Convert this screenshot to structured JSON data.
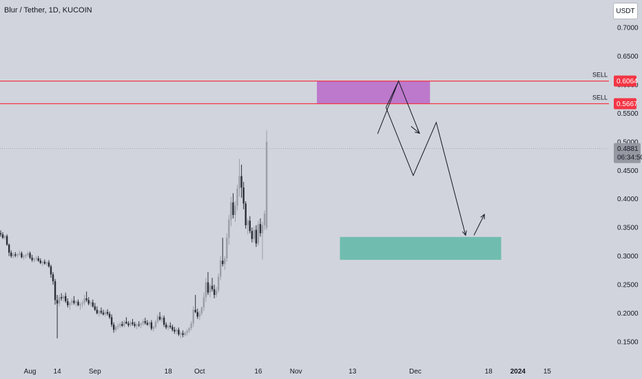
{
  "header": {
    "title": "Blur / Tether, 1D, KUCOIN",
    "currency": "USDT"
  },
  "colors": {
    "background": "#d1d4dc",
    "up": "#9b9ea6",
    "down": "#2a2e39",
    "level_line": "#f23645",
    "sell_zone": "#ba68c8",
    "buy_zone": "#5fb8a7",
    "path": "#131722"
  },
  "chart_data": {
    "type": "candlestick",
    "symbol": "Blur / Tether",
    "interval": "1D",
    "exchange": "KUCOIN",
    "y_range": [
      0.13,
      0.73
    ],
    "y_ticks": [
      "0.7000",
      "0.6500",
      "0.6000",
      "0.5500",
      "0.5000",
      "0.4500",
      "0.4000",
      "0.3500",
      "0.3000",
      "0.2500",
      "0.2000",
      "0.1500"
    ],
    "x_ticks": [
      {
        "label": "Aug",
        "index": 14,
        "bold": false
      },
      {
        "label": "14",
        "index": 27,
        "bold": false
      },
      {
        "label": "Sep",
        "index": 45,
        "bold": false
      },
      {
        "label": "18",
        "index": 80,
        "bold": false
      },
      {
        "label": "Oct",
        "index": 95,
        "bold": false
      },
      {
        "label": "16",
        "index": 123,
        "bold": false
      },
      {
        "label": "Nov",
        "index": 141,
        "bold": false
      },
      {
        "label": "13",
        "index": 168,
        "bold": false
      },
      {
        "label": "Dec",
        "index": 198,
        "bold": false
      },
      {
        "label": "18",
        "index": 233,
        "bold": false
      },
      {
        "label": "2024",
        "index": 247,
        "bold": true
      },
      {
        "label": "15",
        "index": 261,
        "bold": false
      }
    ],
    "levels": [
      {
        "value": 0.6064,
        "label": "0.6064",
        "note": "SELL"
      },
      {
        "value": 0.5667,
        "label": "0.5667",
        "note": "SELL"
      }
    ],
    "last_price": {
      "value": 0.4881,
      "label": "0.4881",
      "countdown": "06:34:50"
    },
    "zones": [
      {
        "name": "sell-zone",
        "from_index": 151,
        "to_index": 205,
        "low": 0.5667,
        "high": 0.6064
      },
      {
        "name": "buy-zone",
        "from_index": 162,
        "to_index": 239,
        "low": 0.2935,
        "high": 0.3335
      }
    ],
    "projection_path": [
      [
        180,
        0.514
      ],
      [
        190,
        0.6064
      ],
      [
        200,
        0.515
      ],
      [
        196,
        0.527
      ],
      [
        200,
        0.515
      ],
      [
        190,
        0.6064
      ],
      [
        184,
        0.56
      ],
      [
        197,
        0.441
      ],
      [
        208,
        0.534
      ],
      [
        222,
        0.3365
      ]
    ],
    "projection_arrow_2": [
      [
        226,
        0.3365
      ],
      [
        231,
        0.373
      ]
    ],
    "candles": [
      [
        0.34,
        0.345,
        0.334,
        0.338
      ],
      [
        0.338,
        0.342,
        0.33,
        0.332
      ],
      [
        0.332,
        0.337,
        0.328,
        0.335
      ],
      [
        0.335,
        0.338,
        0.318,
        0.32
      ],
      [
        0.32,
        0.322,
        0.3,
        0.306
      ],
      [
        0.306,
        0.31,
        0.297,
        0.3
      ],
      [
        0.3,
        0.306,
        0.296,
        0.303
      ],
      [
        0.303,
        0.307,
        0.298,
        0.301
      ],
      [
        0.301,
        0.305,
        0.297,
        0.303
      ],
      [
        0.303,
        0.31,
        0.3,
        0.305
      ],
      [
        0.305,
        0.308,
        0.296,
        0.298
      ],
      [
        0.298,
        0.303,
        0.294,
        0.3
      ],
      [
        0.3,
        0.304,
        0.296,
        0.302
      ],
      [
        0.302,
        0.308,
        0.299,
        0.305
      ],
      [
        0.305,
        0.308,
        0.295,
        0.297
      ],
      [
        0.297,
        0.302,
        0.29,
        0.293
      ],
      [
        0.293,
        0.298,
        0.289,
        0.295
      ],
      [
        0.295,
        0.3,
        0.291,
        0.296
      ],
      [
        0.296,
        0.3,
        0.29,
        0.292
      ],
      [
        0.292,
        0.296,
        0.286,
        0.288
      ],
      [
        0.288,
        0.292,
        0.282,
        0.29
      ],
      [
        0.29,
        0.294,
        0.285,
        0.287
      ],
      [
        0.287,
        0.291,
        0.283,
        0.289
      ],
      [
        0.289,
        0.293,
        0.28,
        0.282
      ],
      [
        0.282,
        0.285,
        0.262,
        0.268
      ],
      [
        0.268,
        0.272,
        0.25,
        0.256
      ],
      [
        0.256,
        0.26,
        0.215,
        0.223
      ],
      [
        0.223,
        0.232,
        0.156,
        0.217
      ],
      [
        0.217,
        0.232,
        0.212,
        0.228
      ],
      [
        0.228,
        0.235,
        0.222,
        0.226
      ],
      [
        0.226,
        0.232,
        0.22,
        0.23
      ],
      [
        0.23,
        0.236,
        0.218,
        0.221
      ],
      [
        0.221,
        0.226,
        0.21,
        0.214
      ],
      [
        0.214,
        0.22,
        0.206,
        0.218
      ],
      [
        0.218,
        0.226,
        0.214,
        0.222
      ],
      [
        0.222,
        0.23,
        0.215,
        0.218
      ],
      [
        0.218,
        0.223,
        0.212,
        0.22
      ],
      [
        0.22,
        0.224,
        0.212,
        0.214
      ],
      [
        0.214,
        0.219,
        0.206,
        0.216
      ],
      [
        0.216,
        0.222,
        0.21,
        0.218
      ],
      [
        0.218,
        0.232,
        0.214,
        0.226
      ],
      [
        0.226,
        0.238,
        0.22,
        0.223
      ],
      [
        0.223,
        0.228,
        0.214,
        0.217
      ],
      [
        0.217,
        0.222,
        0.212,
        0.219
      ],
      [
        0.219,
        0.224,
        0.21,
        0.212
      ],
      [
        0.212,
        0.218,
        0.204,
        0.206
      ],
      [
        0.206,
        0.212,
        0.198,
        0.2
      ],
      [
        0.2,
        0.206,
        0.194,
        0.204
      ],
      [
        0.204,
        0.21,
        0.198,
        0.201
      ],
      [
        0.201,
        0.206,
        0.196,
        0.198
      ],
      [
        0.198,
        0.205,
        0.194,
        0.202
      ],
      [
        0.202,
        0.207,
        0.196,
        0.199
      ],
      [
        0.199,
        0.203,
        0.19,
        0.193
      ],
      [
        0.193,
        0.198,
        0.176,
        0.18
      ],
      [
        0.18,
        0.184,
        0.166,
        0.171
      ],
      [
        0.171,
        0.178,
        0.168,
        0.176
      ],
      [
        0.176,
        0.182,
        0.172,
        0.178
      ],
      [
        0.178,
        0.184,
        0.174,
        0.181
      ],
      [
        0.181,
        0.186,
        0.176,
        0.178
      ],
      [
        0.178,
        0.188,
        0.175,
        0.185
      ],
      [
        0.185,
        0.193,
        0.181,
        0.182
      ],
      [
        0.182,
        0.186,
        0.176,
        0.179
      ],
      [
        0.179,
        0.187,
        0.176,
        0.184
      ],
      [
        0.184,
        0.19,
        0.178,
        0.181
      ],
      [
        0.181,
        0.185,
        0.175,
        0.178
      ],
      [
        0.178,
        0.183,
        0.172,
        0.18
      ],
      [
        0.18,
        0.186,
        0.176,
        0.179
      ],
      [
        0.179,
        0.184,
        0.174,
        0.182
      ],
      [
        0.182,
        0.19,
        0.178,
        0.186
      ],
      [
        0.186,
        0.192,
        0.18,
        0.183
      ],
      [
        0.183,
        0.188,
        0.178,
        0.18
      ],
      [
        0.18,
        0.186,
        0.176,
        0.184
      ],
      [
        0.184,
        0.188,
        0.17,
        0.173
      ],
      [
        0.173,
        0.178,
        0.168,
        0.176
      ],
      [
        0.176,
        0.188,
        0.173,
        0.185
      ],
      [
        0.185,
        0.198,
        0.182,
        0.194
      ],
      [
        0.194,
        0.202,
        0.187,
        0.189
      ],
      [
        0.189,
        0.196,
        0.184,
        0.192
      ],
      [
        0.192,
        0.196,
        0.176,
        0.18
      ],
      [
        0.18,
        0.184,
        0.172,
        0.175
      ],
      [
        0.175,
        0.18,
        0.17,
        0.178
      ],
      [
        0.178,
        0.184,
        0.173,
        0.176
      ],
      [
        0.176,
        0.18,
        0.168,
        0.171
      ],
      [
        0.171,
        0.176,
        0.164,
        0.168
      ],
      [
        0.168,
        0.174,
        0.163,
        0.171
      ],
      [
        0.171,
        0.175,
        0.16,
        0.163
      ],
      [
        0.163,
        0.168,
        0.156,
        0.165
      ],
      [
        0.165,
        0.17,
        0.158,
        0.162
      ],
      [
        0.162,
        0.168,
        0.159,
        0.166
      ],
      [
        0.166,
        0.172,
        0.161,
        0.169
      ],
      [
        0.169,
        0.176,
        0.165,
        0.174
      ],
      [
        0.174,
        0.186,
        0.17,
        0.182
      ],
      [
        0.182,
        0.212,
        0.176,
        0.206
      ],
      [
        0.206,
        0.232,
        0.2,
        0.202
      ],
      [
        0.202,
        0.208,
        0.19,
        0.194
      ],
      [
        0.194,
        0.204,
        0.188,
        0.2
      ],
      [
        0.2,
        0.212,
        0.196,
        0.21
      ],
      [
        0.21,
        0.236,
        0.204,
        0.228
      ],
      [
        0.228,
        0.262,
        0.22,
        0.254
      ],
      [
        0.254,
        0.272,
        0.232,
        0.236
      ],
      [
        0.236,
        0.252,
        0.228,
        0.248
      ],
      [
        0.248,
        0.262,
        0.238,
        0.242
      ],
      [
        0.242,
        0.25,
        0.226,
        0.232
      ],
      [
        0.232,
        0.246,
        0.228,
        0.24
      ],
      [
        0.24,
        0.27,
        0.236,
        0.264
      ],
      [
        0.264,
        0.3,
        0.258,
        0.292
      ],
      [
        0.292,
        0.332,
        0.282,
        0.286
      ],
      [
        0.286,
        0.3,
        0.276,
        0.296
      ],
      [
        0.296,
        0.34,
        0.29,
        0.332
      ],
      [
        0.332,
        0.372,
        0.32,
        0.364
      ],
      [
        0.364,
        0.404,
        0.352,
        0.394
      ],
      [
        0.394,
        0.41,
        0.366,
        0.372
      ],
      [
        0.372,
        0.396,
        0.36,
        0.388
      ],
      [
        0.388,
        0.425,
        0.38,
        0.418
      ],
      [
        0.418,
        0.47,
        0.404,
        0.44
      ],
      [
        0.44,
        0.46,
        0.402,
        0.42
      ],
      [
        0.42,
        0.43,
        0.382,
        0.392
      ],
      [
        0.392,
        0.396,
        0.348,
        0.354
      ],
      [
        0.354,
        0.366,
        0.338,
        0.362
      ],
      [
        0.362,
        0.37,
        0.34,
        0.344
      ],
      [
        0.344,
        0.35,
        0.324,
        0.33
      ],
      [
        0.33,
        0.352,
        0.324,
        0.346
      ],
      [
        0.346,
        0.354,
        0.316,
        0.322
      ],
      [
        0.322,
        0.362,
        0.318,
        0.356
      ],
      [
        0.356,
        0.366,
        0.334,
        0.34
      ],
      [
        0.34,
        0.36,
        0.294,
        0.354
      ],
      [
        0.354,
        0.38,
        0.346,
        0.374
      ],
      [
        0.35,
        0.52,
        0.346,
        0.5
      ]
    ]
  }
}
